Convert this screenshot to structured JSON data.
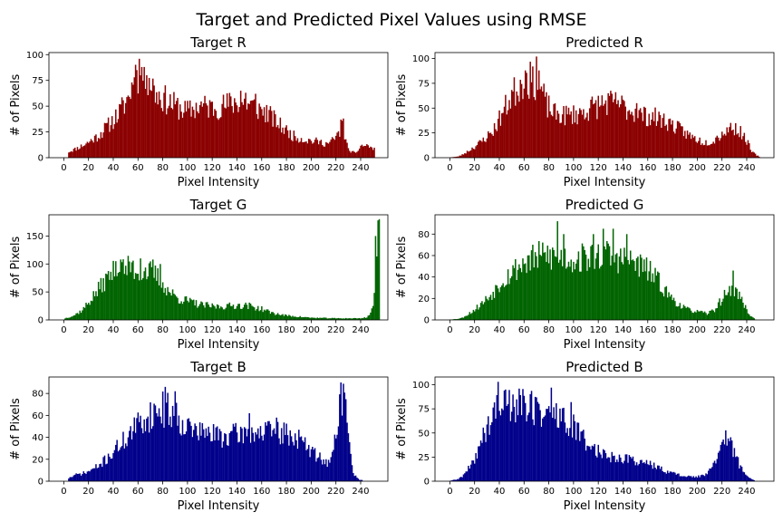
{
  "figure": {
    "title": "Target and Predicted Pixel Values using RMSE",
    "bar_colors": {
      "R": "#8b0000",
      "G": "#006400",
      "B": "#00008b"
    }
  },
  "chart_data": [
    {
      "type": "bar",
      "id": "target-r",
      "title": "Target R",
      "channel": "R",
      "xlabel": "Pixel Intensity",
      "ylabel": "# of Pixels",
      "xlim": [
        -12,
        262
      ],
      "ylim": [
        0,
        102
      ],
      "xticks": [
        0,
        20,
        40,
        60,
        80,
        100,
        120,
        140,
        160,
        180,
        200,
        220,
        240
      ],
      "yticks": [
        0,
        25,
        50,
        75,
        100
      ],
      "bin_start": 4,
      "bin_end": 251,
      "anchors": [
        [
          4,
          6
        ],
        [
          10,
          9
        ],
        [
          18,
          14
        ],
        [
          28,
          22
        ],
        [
          38,
          35
        ],
        [
          45,
          45
        ],
        [
          52,
          60
        ],
        [
          58,
          82
        ],
        [
          63,
          88
        ],
        [
          68,
          82
        ],
        [
          74,
          65
        ],
        [
          82,
          58
        ],
        [
          90,
          52
        ],
        [
          100,
          46
        ],
        [
          110,
          52
        ],
        [
          120,
          50
        ],
        [
          130,
          52
        ],
        [
          140,
          56
        ],
        [
          148,
          55
        ],
        [
          156,
          50
        ],
        [
          165,
          44
        ],
        [
          175,
          32
        ],
        [
          185,
          22
        ],
        [
          195,
          18
        ],
        [
          205,
          16
        ],
        [
          214,
          14
        ],
        [
          220,
          20
        ],
        [
          225,
          30
        ],
        [
          230,
          8
        ],
        [
          236,
          4
        ],
        [
          240,
          12
        ],
        [
          246,
          12
        ],
        [
          251,
          8
        ]
      ],
      "spikes": [
        [
          57,
          78
        ],
        [
          59,
          85
        ],
        [
          61,
          96
        ],
        [
          63,
          88
        ],
        [
          65,
          88
        ],
        [
          67,
          80
        ],
        [
          73,
          70
        ],
        [
          143,
          65
        ],
        [
          147,
          63
        ],
        [
          155,
          62
        ],
        [
          224,
          37
        ],
        [
          226,
          38
        ]
      ],
      "seed": 11
    },
    {
      "type": "bar",
      "id": "predicted-r",
      "title": "Predicted R",
      "channel": "R",
      "xlabel": "Pixel Intensity",
      "ylabel": "# of Pixels",
      "xlim": [
        -12,
        262
      ],
      "ylim": [
        0,
        106
      ],
      "xticks": [
        0,
        20,
        40,
        60,
        80,
        100,
        120,
        140,
        160,
        180,
        200,
        220,
        240
      ],
      "yticks": [
        0,
        25,
        50,
        75,
        100
      ],
      "bin_start": 1,
      "bin_end": 250,
      "anchors": [
        [
          1,
          0.5
        ],
        [
          6,
          1
        ],
        [
          10,
          3
        ],
        [
          16,
          8
        ],
        [
          25,
          16
        ],
        [
          35,
          28
        ],
        [
          42,
          45
        ],
        [
          50,
          65
        ],
        [
          58,
          78
        ],
        [
          66,
          82
        ],
        [
          72,
          78
        ],
        [
          78,
          55
        ],
        [
          85,
          45
        ],
        [
          95,
          44
        ],
        [
          105,
          46
        ],
        [
          115,
          52
        ],
        [
          125,
          57
        ],
        [
          135,
          56
        ],
        [
          145,
          50
        ],
        [
          155,
          44
        ],
        [
          165,
          42
        ],
        [
          175,
          38
        ],
        [
          185,
          30
        ],
        [
          195,
          22
        ],
        [
          205,
          16
        ],
        [
          212,
          17
        ],
        [
          220,
          25
        ],
        [
          228,
          32
        ],
        [
          234,
          28
        ],
        [
          240,
          18
        ],
        [
          244,
          6
        ],
        [
          250,
          1
        ]
      ],
      "spikes": [
        [
          61,
          88
        ],
        [
          67,
          92
        ],
        [
          70,
          102
        ],
        [
          72,
          88
        ],
        [
          128,
          65
        ],
        [
          136,
          58
        ],
        [
          151,
          55
        ]
      ],
      "seed": 23
    },
    {
      "type": "bar",
      "id": "target-g",
      "title": "Target G",
      "channel": "G",
      "xlabel": "Pixel Intensity",
      "ylabel": "# of Pixels",
      "xlim": [
        -12,
        262
      ],
      "ylim": [
        0,
        188
      ],
      "xticks": [
        0,
        20,
        40,
        60,
        80,
        100,
        120,
        140,
        160,
        180,
        200,
        220,
        240
      ],
      "yticks": [
        0,
        50,
        100,
        150
      ],
      "bin_start": 1,
      "bin_end": 255,
      "anchors": [
        [
          1,
          3
        ],
        [
          8,
          8
        ],
        [
          15,
          18
        ],
        [
          22,
          38
        ],
        [
          30,
          62
        ],
        [
          38,
          85
        ],
        [
          45,
          92
        ],
        [
          52,
          95
        ],
        [
          60,
          92
        ],
        [
          68,
          90
        ],
        [
          76,
          80
        ],
        [
          84,
          55
        ],
        [
          92,
          40
        ],
        [
          100,
          35
        ],
        [
          110,
          28
        ],
        [
          120,
          25
        ],
        [
          130,
          25
        ],
        [
          140,
          27
        ],
        [
          150,
          26
        ],
        [
          160,
          20
        ],
        [
          170,
          12
        ],
        [
          180,
          8
        ],
        [
          190,
          6
        ],
        [
          200,
          4
        ],
        [
          220,
          3
        ],
        [
          240,
          3
        ],
        [
          245,
          5
        ],
        [
          248,
          12
        ],
        [
          251,
          40
        ],
        [
          253,
          100
        ],
        [
          255,
          178
        ]
      ],
      "spikes": [
        [
          42,
          105
        ],
        [
          46,
          108
        ],
        [
          55,
          103
        ],
        [
          62,
          110
        ],
        [
          72,
          108
        ],
        [
          78,
          100
        ],
        [
          252,
          150
        ],
        [
          254,
          178
        ]
      ],
      "seed": 37
    },
    {
      "type": "bar",
      "id": "predicted-g",
      "title": "Predicted G",
      "channel": "G",
      "xlabel": "Pixel Intensity",
      "ylabel": "# of Pixels",
      "xlim": [
        -12,
        262
      ],
      "ylim": [
        0,
        98
      ],
      "xticks": [
        0,
        20,
        40,
        60,
        80,
        100,
        120,
        140,
        160,
        180,
        200,
        220,
        240
      ],
      "yticks": [
        0,
        20,
        40,
        60,
        80
      ],
      "bin_start": 0,
      "bin_end": 247,
      "anchors": [
        [
          0,
          0.3
        ],
        [
          6,
          1
        ],
        [
          10,
          2
        ],
        [
          18,
          8
        ],
        [
          26,
          16
        ],
        [
          34,
          25
        ],
        [
          42,
          38
        ],
        [
          52,
          48
        ],
        [
          60,
          55
        ],
        [
          70,
          60
        ],
        [
          80,
          62
        ],
        [
          90,
          60
        ],
        [
          100,
          58
        ],
        [
          110,
          60
        ],
        [
          120,
          62
        ],
        [
          130,
          62
        ],
        [
          140,
          58
        ],
        [
          150,
          55
        ],
        [
          160,
          48
        ],
        [
          168,
          38
        ],
        [
          176,
          25
        ],
        [
          184,
          16
        ],
        [
          192,
          10
        ],
        [
          200,
          8
        ],
        [
          208,
          6
        ],
        [
          214,
          10
        ],
        [
          220,
          20
        ],
        [
          226,
          30
        ],
        [
          232,
          28
        ],
        [
          238,
          14
        ],
        [
          243,
          4
        ],
        [
          247,
          0.5
        ]
      ],
      "spikes": [
        [
          87,
          92
        ],
        [
          92,
          80
        ],
        [
          116,
          80
        ],
        [
          124,
          85
        ],
        [
          132,
          85
        ],
        [
          143,
          80
        ],
        [
          229,
          46
        ]
      ],
      "seed": 53
    },
    {
      "type": "bar",
      "id": "target-b",
      "title": "Target B",
      "channel": "B",
      "xlabel": "Pixel Intensity",
      "ylabel": "# of Pixels",
      "xlim": [
        -12,
        262
      ],
      "ylim": [
        0,
        95
      ],
      "xticks": [
        0,
        20,
        40,
        60,
        80,
        100,
        120,
        140,
        160,
        180,
        200,
        220,
        240
      ],
      "yticks": [
        0,
        20,
        40,
        60,
        80
      ],
      "bin_start": 4,
      "bin_end": 241,
      "anchors": [
        [
          4,
          3
        ],
        [
          10,
          6
        ],
        [
          18,
          8
        ],
        [
          28,
          14
        ],
        [
          38,
          25
        ],
        [
          46,
          35
        ],
        [
          54,
          45
        ],
        [
          62,
          55
        ],
        [
          70,
          62
        ],
        [
          78,
          68
        ],
        [
          86,
          66
        ],
        [
          94,
          58
        ],
        [
          102,
          50
        ],
        [
          110,
          46
        ],
        [
          120,
          44
        ],
        [
          130,
          42
        ],
        [
          140,
          44
        ],
        [
          150,
          46
        ],
        [
          160,
          46
        ],
        [
          170,
          46
        ],
        [
          180,
          44
        ],
        [
          190,
          40
        ],
        [
          200,
          28
        ],
        [
          210,
          20
        ],
        [
          215,
          16
        ],
        [
          218,
          30
        ],
        [
          222,
          60
        ],
        [
          224,
          80
        ],
        [
          226,
          86
        ],
        [
          228,
          70
        ],
        [
          231,
          30
        ],
        [
          234,
          8
        ],
        [
          238,
          2
        ],
        [
          241,
          1
        ]
      ],
      "spikes": [
        [
          82,
          86
        ],
        [
          90,
          82
        ],
        [
          150,
          62
        ],
        [
          172,
          58
        ],
        [
          224,
          90
        ]
      ],
      "seed": 71
    },
    {
      "type": "bar",
      "id": "predicted-b",
      "title": "Predicted B",
      "channel": "B",
      "xlabel": "Pixel Intensity",
      "ylabel": "# of Pixels",
      "xlim": [
        -12,
        262
      ],
      "ylim": [
        0,
        108
      ],
      "xticks": [
        0,
        20,
        40,
        60,
        80,
        100,
        120,
        140,
        160,
        180,
        200,
        220,
        240
      ],
      "yticks": [
        0,
        25,
        50,
        75,
        100
      ],
      "bin_start": 0,
      "bin_end": 246,
      "anchors": [
        [
          0,
          0.5
        ],
        [
          6,
          2
        ],
        [
          10,
          5
        ],
        [
          18,
          18
        ],
        [
          26,
          45
        ],
        [
          34,
          68
        ],
        [
          42,
          82
        ],
        [
          50,
          85
        ],
        [
          58,
          82
        ],
        [
          66,
          78
        ],
        [
          74,
          75
        ],
        [
          82,
          72
        ],
        [
          90,
          68
        ],
        [
          98,
          60
        ],
        [
          106,
          48
        ],
        [
          114,
          38
        ],
        [
          122,
          30
        ],
        [
          132,
          26
        ],
        [
          142,
          24
        ],
        [
          152,
          22
        ],
        [
          162,
          18
        ],
        [
          172,
          12
        ],
        [
          182,
          8
        ],
        [
          192,
          5
        ],
        [
          202,
          5
        ],
        [
          208,
          8
        ],
        [
          214,
          18
        ],
        [
          220,
          40
        ],
        [
          224,
          48
        ],
        [
          228,
          38
        ],
        [
          234,
          18
        ],
        [
          240,
          5
        ],
        [
          246,
          1
        ]
      ],
      "spikes": [
        [
          39,
          103
        ],
        [
          45,
          95
        ],
        [
          56,
          96
        ],
        [
          82,
          97
        ],
        [
          98,
          82
        ]
      ],
      "seed": 89
    }
  ]
}
